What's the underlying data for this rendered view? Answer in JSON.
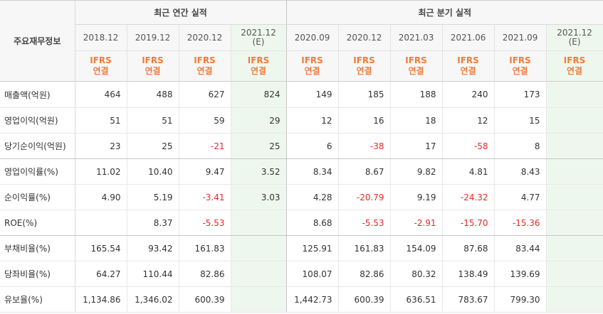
{
  "header": {
    "row_label": "주요재무정보",
    "annual_group": "최근 연간 실적",
    "quarterly_group": "최근 분기 실적"
  },
  "periods": [
    {
      "label": "2018.12",
      "est": false,
      "type": "IFRS\n연결"
    },
    {
      "label": "2019.12",
      "est": false,
      "type": "IFRS\n연결"
    },
    {
      "label": "2020.12",
      "est": false,
      "type": "IFRS\n연결"
    },
    {
      "label": "2021.12\n(E)",
      "est": true,
      "type": "IFRS\n연결"
    },
    {
      "label": "2020.09",
      "est": false,
      "type": "IFRS\n연결"
    },
    {
      "label": "2020.12",
      "est": false,
      "type": "IFRS\n연결"
    },
    {
      "label": "2021.03",
      "est": false,
      "type": "IFRS\n연결"
    },
    {
      "label": "2021.06",
      "est": false,
      "type": "IFRS\n연결"
    },
    {
      "label": "2021.09",
      "est": false,
      "type": "IFRS\n연결"
    },
    {
      "label": "2021.12\n(E)",
      "est": true,
      "type": "IFRS\n연결"
    }
  ],
  "rows": [
    {
      "label": "매출액(억원)",
      "values": [
        "464",
        "488",
        "627",
        "824",
        "149",
        "185",
        "188",
        "240",
        "173",
        ""
      ]
    },
    {
      "label": "영업이익(억원)",
      "values": [
        "51",
        "51",
        "59",
        "29",
        "12",
        "16",
        "18",
        "12",
        "15",
        ""
      ]
    },
    {
      "label": "당기순이익(억원)",
      "values": [
        "23",
        "25",
        "-21",
        "25",
        "6",
        "-38",
        "17",
        "-58",
        "8",
        ""
      ]
    },
    {
      "label": "영업이익률(%)",
      "values": [
        "11.02",
        "10.40",
        "9.47",
        "3.52",
        "8.34",
        "8.67",
        "9.82",
        "4.81",
        "8.43",
        ""
      ]
    },
    {
      "label": "순이익률(%)",
      "values": [
        "4.90",
        "5.19",
        "-3.41",
        "3.03",
        "4.28",
        "-20.79",
        "9.19",
        "-24.32",
        "4.77",
        ""
      ]
    },
    {
      "label": "ROE(%)",
      "values": [
        "",
        "8.37",
        "-5.53",
        "",
        "8.68",
        "-5.53",
        "-2.91",
        "-15.70",
        "-15.36",
        ""
      ]
    },
    {
      "label": "부채비율(%)",
      "values": [
        "165.54",
        "93.42",
        "161.83",
        "",
        "125.91",
        "161.83",
        "154.09",
        "87.68",
        "83.44",
        ""
      ]
    },
    {
      "label": "당좌비율(%)",
      "values": [
        "64.27",
        "110.44",
        "82.86",
        "",
        "108.07",
        "82.86",
        "80.32",
        "138.49",
        "139.69",
        ""
      ]
    },
    {
      "label": "유보율(%)",
      "values": [
        "1,134.86",
        "1,346.02",
        "600.39",
        "",
        "1,442.73",
        "600.39",
        "636.51",
        "783.67",
        "799.30",
        ""
      ]
    }
  ],
  "colors": {
    "ifrs_orange": "#f07c3a",
    "negative_red": "#e62a2a",
    "estimate_bg": "#eef7ee",
    "header_bg": "#f7f7f7"
  }
}
